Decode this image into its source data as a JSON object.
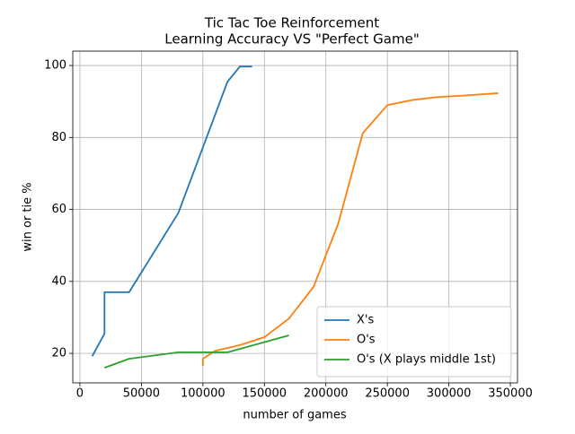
{
  "chart_data": {
    "type": "line",
    "title": "Tic Tac Toe Reinforcement",
    "subtitle": "Learning Accuracy VS \"Perfect Game\"",
    "x_label": "number of games",
    "y_label": "win or tie %",
    "xlim": [
      -5800,
      355800
    ],
    "ylim": [
      11.8,
      104
    ],
    "xticks": [
      0,
      50000,
      100000,
      150000,
      200000,
      250000,
      300000,
      350000
    ],
    "yticks": [
      20,
      40,
      60,
      80,
      100
    ],
    "grid": true,
    "legend": "lower right",
    "series": [
      {
        "name": "X's",
        "color": "#1f77b4",
        "x": [
          10000,
          20000,
          20000,
          40000,
          80000,
          120000,
          130000,
          140000
        ],
        "values": [
          19.2,
          25.5,
          37,
          37,
          59,
          95.5,
          99.7,
          99.7
        ]
      },
      {
        "name": "O's",
        "color": "#ff7f0e",
        "x": [
          100000,
          100000,
          110000,
          130000,
          150000,
          170000,
          190000,
          210000,
          230000,
          250000,
          270000,
          290000,
          310000,
          340000
        ],
        "values": [
          16.5,
          18.5,
          20.7,
          22.3,
          24.5,
          29.7,
          38.5,
          56,
          81.2,
          89,
          90.4,
          91.2,
          91.6,
          92.3
        ]
      },
      {
        "name": "O's (X plays middle 1st)",
        "color": "#2ca02c",
        "x": [
          20000,
          40000,
          80000,
          120000,
          170000
        ],
        "values": [
          16,
          18.5,
          20.3,
          20.3,
          25
        ]
      }
    ]
  }
}
